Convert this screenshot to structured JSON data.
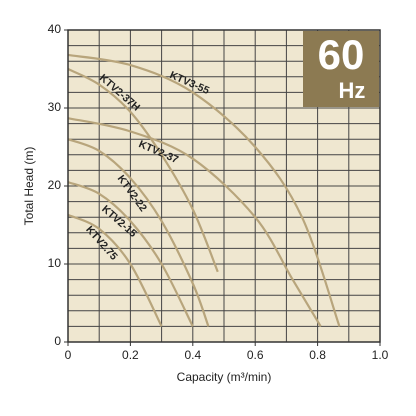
{
  "chart_data": {
    "type": "line",
    "x_label": "Capacity (m³/min)",
    "y_label": "Total Head (m)",
    "badge_value": "60",
    "badge_unit": "Hz",
    "xlim": [
      0,
      1
    ],
    "ylim": [
      0,
      40
    ],
    "xticks": [
      0,
      0.2,
      0.4,
      0.6,
      0.8,
      {
        "value": 1,
        "label": "1.0"
      }
    ],
    "yticks": [
      0,
      10,
      20,
      30,
      40
    ],
    "x_grid": [
      0.1,
      0.2,
      0.3,
      0.4,
      0.5,
      0.6,
      0.7,
      0.8,
      0.9
    ],
    "y_grid": [
      2,
      4,
      6,
      8,
      10,
      12,
      14,
      16,
      18,
      20,
      22,
      24,
      26,
      28,
      30,
      32,
      34,
      36,
      38
    ],
    "grid": true,
    "series": [
      {
        "name": "KTV3-55",
        "color": "#b8a57c",
        "x": [
          0,
          0.2,
          0.4,
          0.6,
          0.75,
          0.87
        ],
        "values": [
          36.8,
          35.5,
          32,
          25,
          16,
          2
        ]
      },
      {
        "name": "KTV2-37H",
        "color": "#b8a57c",
        "x": [
          0,
          0.1,
          0.2,
          0.3,
          0.4,
          0.48
        ],
        "values": [
          35,
          33,
          29.5,
          24,
          17,
          9
        ]
      },
      {
        "name": "KTV2-37",
        "color": "#b8a57c",
        "x": [
          0,
          0.2,
          0.4,
          0.6,
          0.72,
          0.81
        ],
        "values": [
          28.7,
          27,
          23.5,
          16,
          8,
          2
        ]
      },
      {
        "name": "KTV2-22",
        "color": "#b8a57c",
        "x": [
          0,
          0.1,
          0.2,
          0.3,
          0.4,
          0.45
        ],
        "values": [
          26,
          24.5,
          21,
          15.5,
          7.5,
          2
        ]
      },
      {
        "name": "KTV2-15",
        "color": "#b8a57c",
        "x": [
          0,
          0.1,
          0.2,
          0.3,
          0.4
        ],
        "values": [
          20.5,
          19,
          15.5,
          10,
          2
        ]
      },
      {
        "name": "KTV2.75",
        "color": "#b8a57c",
        "x": [
          0,
          0.1,
          0.2,
          0.3
        ],
        "values": [
          16.3,
          14.5,
          10,
          2
        ]
      }
    ]
  }
}
